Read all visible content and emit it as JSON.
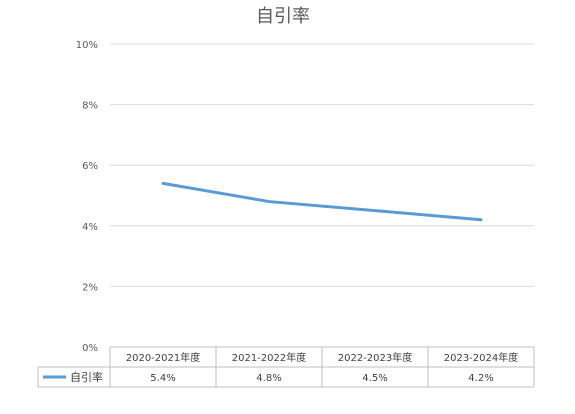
{
  "chart_data": {
    "type": "line",
    "title": "自引率",
    "categories": [
      "2020-2021年度",
      "2021-2022年度",
      "2022-2023年度",
      "2023-2024年度"
    ],
    "series": [
      {
        "name": "自引率",
        "values": [
          5.4,
          4.8,
          4.5,
          4.2
        ],
        "labels": [
          "5.4%",
          "4.8%",
          "4.5%",
          "4.2%"
        ],
        "color": "#5B9BD5"
      }
    ],
    "ylim": [
      0,
      10
    ],
    "yticks": [
      "0%",
      "2%",
      "4%",
      "6%",
      "8%",
      "10%"
    ],
    "ytick_values": [
      0,
      2,
      4,
      6,
      8,
      10
    ],
    "grid": true,
    "legend": "data-table-left"
  }
}
